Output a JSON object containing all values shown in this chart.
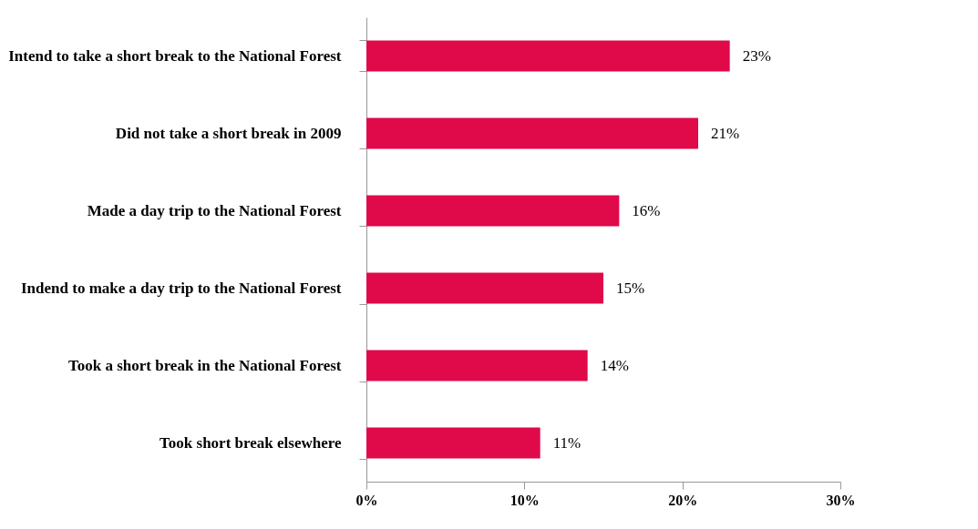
{
  "chart_data": {
    "type": "bar",
    "orientation": "horizontal",
    "categories": [
      "Intend to take a short break to the National Forest",
      "Did not take a short break in 2009",
      "Made a day trip to the National Forest",
      "Indend to make a day trip to the National Forest",
      "Took a short break in the National Forest",
      "Took short break elsewhere"
    ],
    "values": [
      23,
      21,
      16,
      15,
      14,
      11
    ],
    "value_labels": [
      "23%",
      "21%",
      "16%",
      "15%",
      "14%",
      "11%"
    ],
    "color": "#e0094a",
    "xlim": [
      0,
      30
    ],
    "xticks": [
      {
        "value": 0,
        "label": "0%"
      },
      {
        "value": 10,
        "label": "10%"
      },
      {
        "value": 20,
        "label": "20%"
      },
      {
        "value": 30,
        "label": "30%"
      }
    ],
    "grid": false
  }
}
